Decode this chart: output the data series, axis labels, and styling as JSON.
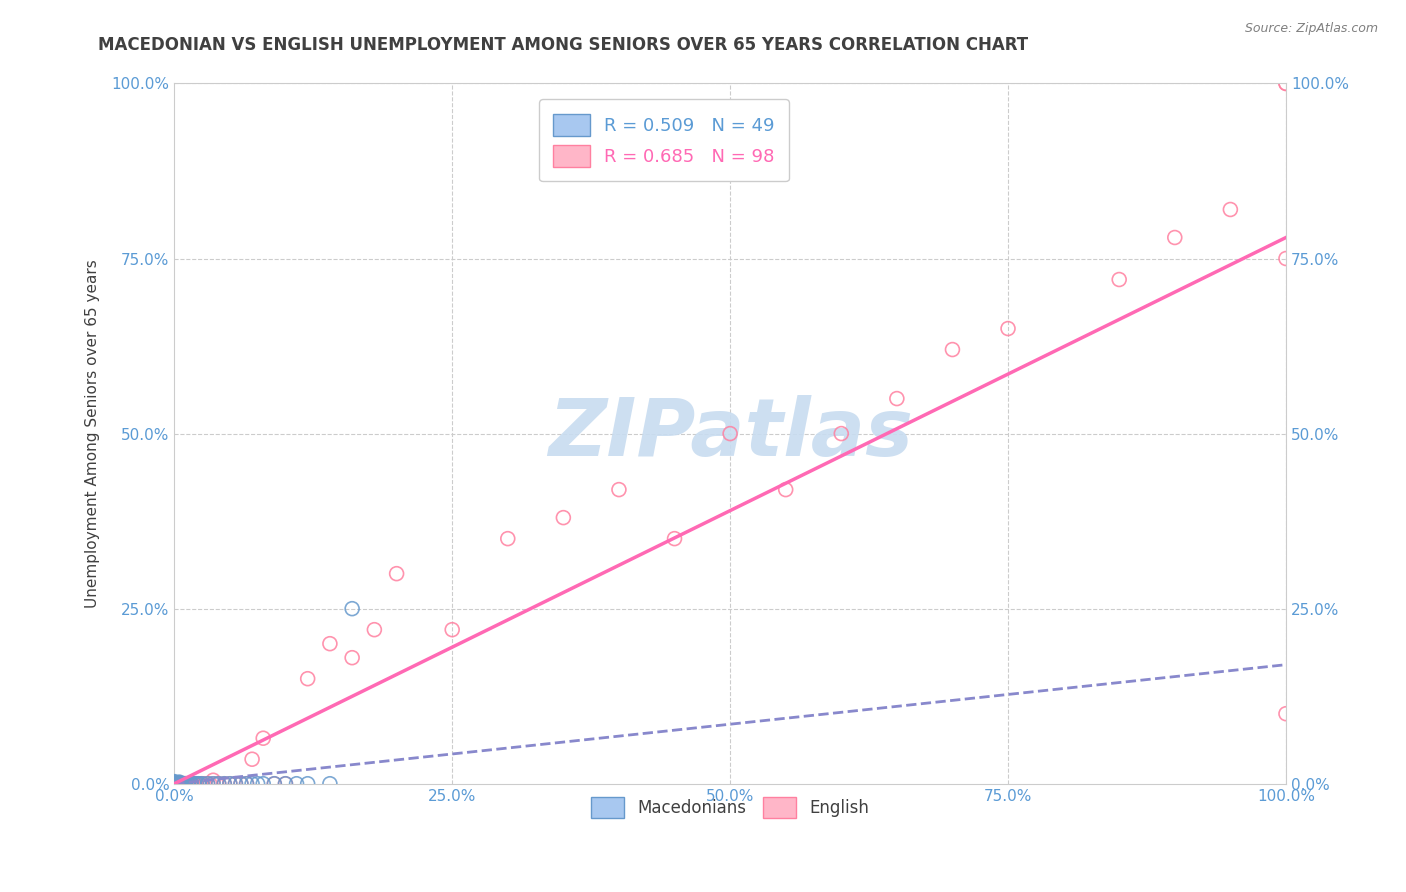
{
  "title": "MACEDONIAN VS ENGLISH UNEMPLOYMENT AMONG SENIORS OVER 65 YEARS CORRELATION CHART",
  "source": "Source: ZipAtlas.com",
  "ylabel": "Unemployment Among Seniors over 65 years",
  "xlim": [
    0,
    1.0
  ],
  "ylim": [
    0,
    1.0
  ],
  "xticks": [
    0.0,
    0.25,
    0.5,
    0.75,
    1.0
  ],
  "yticks": [
    0.0,
    0.25,
    0.5,
    0.75,
    1.0
  ],
  "xticklabels": [
    "0.0%",
    "25.0%",
    "50.0%",
    "75.0%",
    "100.0%"
  ],
  "yticklabels": [
    "0.0%",
    "25.0%",
    "50.0%",
    "75.0%",
    "100.0%"
  ],
  "blue_R": 0.509,
  "blue_N": 49,
  "pink_R": 0.685,
  "pink_N": 98,
  "blue_color": "#A8C8F0",
  "pink_color": "#FFB6C8",
  "blue_edge_color": "#6699CC",
  "pink_edge_color": "#FF80A0",
  "blue_line_color": "#8888CC",
  "pink_line_color": "#FF69B4",
  "legend_blue_text_color": "#5B9BD5",
  "legend_pink_text_color": "#FF69B4",
  "title_color": "#404040",
  "axis_color": "#5B9BD5",
  "grid_color": "#CCCCCC",
  "watermark_color": "#C8DCF0",
  "background_color": "#FFFFFF",
  "blue_scatter_x": [
    0.0,
    0.0,
    0.0,
    0.0,
    0.0,
    0.0,
    0.0,
    0.0,
    0.0,
    0.0,
    0.002,
    0.002,
    0.003,
    0.003,
    0.004,
    0.004,
    0.005,
    0.005,
    0.006,
    0.007,
    0.008,
    0.009,
    0.01,
    0.01,
    0.012,
    0.013,
    0.015,
    0.015,
    0.018,
    0.02,
    0.022,
    0.025,
    0.03,
    0.035,
    0.04,
    0.045,
    0.05,
    0.055,
    0.06,
    0.065,
    0.07,
    0.075,
    0.08,
    0.09,
    0.1,
    0.11,
    0.12,
    0.14,
    0.16
  ],
  "blue_scatter_y": [
    0.0,
    0.0,
    0.0,
    0.0,
    0.0,
    0.0,
    0.0,
    0.002,
    0.002,
    0.003,
    0.0,
    0.0,
    0.0,
    0.0,
    0.0,
    0.002,
    0.0,
    0.002,
    0.0,
    0.0,
    0.0,
    0.0,
    0.0,
    0.0,
    0.0,
    0.0,
    0.0,
    0.0,
    0.0,
    0.0,
    0.0,
    0.0,
    0.0,
    0.0,
    0.0,
    0.0,
    0.0,
    0.0,
    0.0,
    0.0,
    0.0,
    0.0,
    0.0,
    0.0,
    0.0,
    0.0,
    0.0,
    0.0,
    0.25
  ],
  "pink_scatter_x": [
    0.0,
    0.0,
    0.0,
    0.0,
    0.0,
    0.0,
    0.0,
    0.0,
    0.0,
    0.0,
    0.0,
    0.0,
    0.0,
    0.0,
    0.0,
    0.0,
    0.0,
    0.0,
    0.0,
    0.0,
    0.001,
    0.001,
    0.002,
    0.002,
    0.002,
    0.003,
    0.003,
    0.003,
    0.004,
    0.004,
    0.004,
    0.005,
    0.005,
    0.005,
    0.005,
    0.005,
    0.006,
    0.006,
    0.007,
    0.007,
    0.008,
    0.008,
    0.009,
    0.009,
    0.01,
    0.01,
    0.01,
    0.011,
    0.012,
    0.013,
    0.014,
    0.015,
    0.016,
    0.017,
    0.018,
    0.019,
    0.02,
    0.022,
    0.024,
    0.025,
    0.027,
    0.03,
    0.032,
    0.035,
    0.038,
    0.04,
    0.045,
    0.05,
    0.055,
    0.06,
    0.065,
    0.07,
    0.08,
    0.09,
    0.1,
    0.12,
    0.14,
    0.16,
    0.18,
    0.2,
    0.25,
    0.3,
    0.35,
    0.4,
    0.45,
    0.5,
    0.55,
    0.6,
    0.65,
    0.7,
    0.75,
    0.85,
    0.9,
    0.95,
    1.0,
    1.0,
    1.0,
    1.0
  ],
  "pink_scatter_y": [
    0.0,
    0.0,
    0.0,
    0.0,
    0.0,
    0.0,
    0.0,
    0.0,
    0.0,
    0.0,
    0.0,
    0.0,
    0.0,
    0.0,
    0.0,
    0.0,
    0.0,
    0.0,
    0.0,
    0.0,
    0.0,
    0.0,
    0.0,
    0.0,
    0.0,
    0.0,
    0.0,
    0.0,
    0.0,
    0.0,
    0.0,
    0.0,
    0.0,
    0.0,
    0.0,
    0.0,
    0.0,
    0.0,
    0.0,
    0.0,
    0.0,
    0.0,
    0.0,
    0.0,
    0.0,
    0.0,
    0.0,
    0.0,
    0.0,
    0.0,
    0.0,
    0.0,
    0.0,
    0.0,
    0.0,
    0.0,
    0.0,
    0.0,
    0.0,
    0.0,
    0.0,
    0.0,
    0.0,
    0.005,
    0.0,
    0.0,
    0.0,
    0.0,
    0.0,
    0.0,
    0.0,
    0.035,
    0.065,
    0.0,
    0.0,
    0.15,
    0.2,
    0.18,
    0.22,
    0.3,
    0.22,
    0.35,
    0.38,
    0.42,
    0.35,
    0.5,
    0.42,
    0.5,
    0.55,
    0.62,
    0.65,
    0.72,
    0.78,
    0.82,
    0.1,
    1.0,
    0.75,
    1.0
  ]
}
